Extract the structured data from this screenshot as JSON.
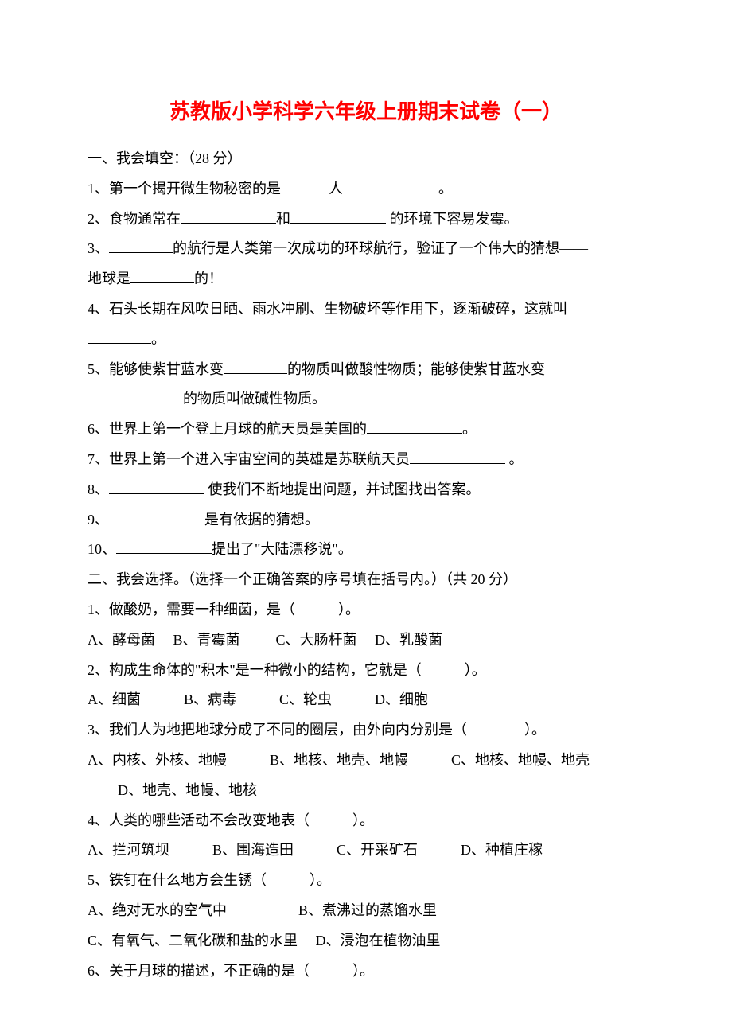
{
  "title": "苏教版小学科学六年级上册期末试卷（一）",
  "section1": {
    "header": "一、我会填空：（28 分）",
    "q1": {
      "p1": "1、第一个揭开微生物秘密的是",
      "p2": "人",
      "p3": "。"
    },
    "q2": {
      "p1": "2、食物通常在",
      "p2": "和",
      "p3": " 的环境下容易发霉。"
    },
    "q3": {
      "p1": "3、",
      "p2": "的航行是人类第一次成功的环球航行，验证了一个伟大的猜想——",
      "p3": "地球是",
      "p4": "的！"
    },
    "q4": {
      "p1": "4、石头长期在风吹日晒、雨水冲刷、生物破坏等作用下，逐渐破碎，这就叫",
      "p2": "。"
    },
    "q5": {
      "p1": "5、能够使紫甘蓝水变",
      "p2": "的物质叫做酸性物质；能够使紫甘蓝水变",
      "p3": "的物质叫做碱性物质。"
    },
    "q6": {
      "p1": "6、世界上第一个登上月球的航天员是美国的",
      "p2": "。"
    },
    "q7": {
      "p1": "7、世界上第一个进入宇宙空间的英雄是苏联航天员",
      "p2": " 。"
    },
    "q8": {
      "p1": "8、",
      "p2": " 使我们不断地提出问题，并试图找出答案。"
    },
    "q9": {
      "p1": "9、",
      "p2": "是有依据的猜想。"
    },
    "q10": {
      "p1": "10、",
      "p2": "提出了\"大陆漂移说\"。"
    }
  },
  "section2": {
    "header": "二、我会选择。（选择一个正确答案的序号填在括号内。）（共 20 分）",
    "q1": {
      "stem": "1、做酸奶，需要一种细菌，是（　　　）。",
      "opts": "A、酵母菌　 B、青霉菌 　　 C、大肠杆菌　 D、乳酸菌"
    },
    "q2": {
      "stem": "2、构成生命体的\"积木\"是一种微小的结构，它就是（　　　）。",
      "opts": "A、细菌　　　B、病毒　　　C、轮虫　　　D、细胞"
    },
    "q3": {
      "stem": "3、我们人为地把地球分成了不同的圈层，由外向内分别是（　　　　）。",
      "opts1": "A、内核、外核、地幔　　　B、地核、地壳、地幔　　　C、地核、地幔、地壳",
      "opts2": "D、地壳、地幔、地核"
    },
    "q4": {
      "stem": "4、人类的哪些活动不会改变地表（　　　）。",
      "opts": "A、拦河筑坝　　　B、围海造田　　　C、开采矿石　　　D、种植庄稼"
    },
    "q5": {
      "stem": "5、铁钉在什么地方会生锈（　　　）。",
      "opts1": "A、绝对无水的空气中　　　　　B、煮沸过的蒸馏水里",
      "opts2": "C、有氧气、二氧化碳和盐的水里　 D、浸泡在植物油里"
    },
    "q6": {
      "stem": "6、关于月球的描述，不正确的是（　　　）。"
    }
  }
}
